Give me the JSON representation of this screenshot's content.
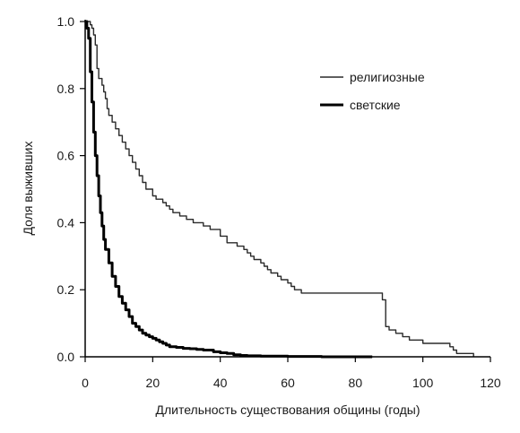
{
  "chart_data": {
    "type": "line",
    "title": "",
    "xlabel": "Длительность существования общины (годы)",
    "ylabel": "Доля выживших",
    "xlim": [
      0,
      120
    ],
    "ylim": [
      0,
      1.0
    ],
    "x_ticks": [
      0,
      20,
      40,
      60,
      80,
      100,
      120
    ],
    "y_ticks": [
      0.0,
      0.2,
      0.4,
      0.6,
      0.8,
      1.0
    ],
    "x_tick_labels": [
      "0",
      "20",
      "40",
      "60",
      "80",
      "100",
      "120"
    ],
    "y_tick_labels": [
      "0.0",
      "0.2",
      "0.4",
      "0.6",
      "0.8",
      "1.0"
    ],
    "grid": false,
    "legend_position": "top-right",
    "series": [
      {
        "name": "религиозные",
        "color": "#2a2a2a",
        "style": "thin",
        "points": [
          [
            0,
            1.0
          ],
          [
            1,
            1.0
          ],
          [
            1.5,
            0.99
          ],
          [
            2,
            0.98
          ],
          [
            2.5,
            0.96
          ],
          [
            3,
            0.93
          ],
          [
            3.5,
            0.86
          ],
          [
            4,
            0.83
          ],
          [
            5,
            0.81
          ],
          [
            5.5,
            0.79
          ],
          [
            6,
            0.77
          ],
          [
            6.5,
            0.74
          ],
          [
            7,
            0.72
          ],
          [
            8,
            0.7
          ],
          [
            9,
            0.68
          ],
          [
            10,
            0.66
          ],
          [
            11,
            0.64
          ],
          [
            12,
            0.62
          ],
          [
            13,
            0.6
          ],
          [
            14,
            0.58
          ],
          [
            15,
            0.56
          ],
          [
            16,
            0.54
          ],
          [
            17,
            0.52
          ],
          [
            18,
            0.5
          ],
          [
            20,
            0.48
          ],
          [
            21,
            0.47
          ],
          [
            23,
            0.46
          ],
          [
            24,
            0.45
          ],
          [
            25,
            0.44
          ],
          [
            26,
            0.43
          ],
          [
            28,
            0.42
          ],
          [
            30,
            0.41
          ],
          [
            32,
            0.4
          ],
          [
            35,
            0.39
          ],
          [
            37,
            0.38
          ],
          [
            40,
            0.36
          ],
          [
            42,
            0.34
          ],
          [
            45,
            0.33
          ],
          [
            47,
            0.32
          ],
          [
            48,
            0.31
          ],
          [
            49,
            0.3
          ],
          [
            50,
            0.29
          ],
          [
            52,
            0.28
          ],
          [
            53,
            0.27
          ],
          [
            54,
            0.26
          ],
          [
            55,
            0.25
          ],
          [
            57,
            0.24
          ],
          [
            58,
            0.23
          ],
          [
            60,
            0.22
          ],
          [
            61,
            0.21
          ],
          [
            62,
            0.2
          ],
          [
            64,
            0.19
          ],
          [
            68,
            0.19
          ],
          [
            75,
            0.19
          ],
          [
            78,
            0.19
          ],
          [
            81,
            0.19
          ],
          [
            84,
            0.19
          ],
          [
            87,
            0.19
          ],
          [
            88,
            0.17
          ],
          [
            88,
            0.17
          ],
          [
            89,
            0.09
          ],
          [
            90,
            0.08
          ],
          [
            92,
            0.07
          ],
          [
            94,
            0.06
          ],
          [
            96,
            0.05
          ],
          [
            98,
            0.05
          ],
          [
            100,
            0.04
          ],
          [
            103,
            0.04
          ],
          [
            105,
            0.04
          ],
          [
            107,
            0.04
          ],
          [
            108,
            0.03
          ],
          [
            109,
            0.02
          ],
          [
            110,
            0.01
          ],
          [
            112,
            0.01
          ],
          [
            115,
            0.0
          ]
        ]
      },
      {
        "name": "светские",
        "color": "#000000",
        "style": "thick",
        "points": [
          [
            0,
            1.0
          ],
          [
            0.5,
            0.98
          ],
          [
            1,
            0.95
          ],
          [
            1.5,
            0.85
          ],
          [
            2,
            0.76
          ],
          [
            2.5,
            0.67
          ],
          [
            3,
            0.6
          ],
          [
            3.5,
            0.54
          ],
          [
            4,
            0.48
          ],
          [
            4.5,
            0.43
          ],
          [
            5,
            0.39
          ],
          [
            5.5,
            0.35
          ],
          [
            6,
            0.32
          ],
          [
            7,
            0.28
          ],
          [
            8,
            0.24
          ],
          [
            9,
            0.21
          ],
          [
            10,
            0.18
          ],
          [
            11,
            0.16
          ],
          [
            12,
            0.14
          ],
          [
            13,
            0.12
          ],
          [
            14,
            0.1
          ],
          [
            15,
            0.09
          ],
          [
            16,
            0.08
          ],
          [
            17,
            0.07
          ],
          [
            18,
            0.065
          ],
          [
            19,
            0.06
          ],
          [
            20,
            0.055
          ],
          [
            21,
            0.05
          ],
          [
            22,
            0.045
          ],
          [
            23,
            0.04
          ],
          [
            24,
            0.035
          ],
          [
            25,
            0.03
          ],
          [
            27,
            0.028
          ],
          [
            29,
            0.025
          ],
          [
            31,
            0.024
          ],
          [
            33,
            0.022
          ],
          [
            35,
            0.02
          ],
          [
            38,
            0.015
          ],
          [
            40,
            0.012
          ],
          [
            42,
            0.01
          ],
          [
            44,
            0.006
          ],
          [
            46,
            0.004
          ],
          [
            48,
            0.003
          ],
          [
            52,
            0.002
          ],
          [
            60,
            0.001
          ],
          [
            70,
            0.0
          ],
          [
            85,
            0.0
          ]
        ]
      }
    ]
  }
}
